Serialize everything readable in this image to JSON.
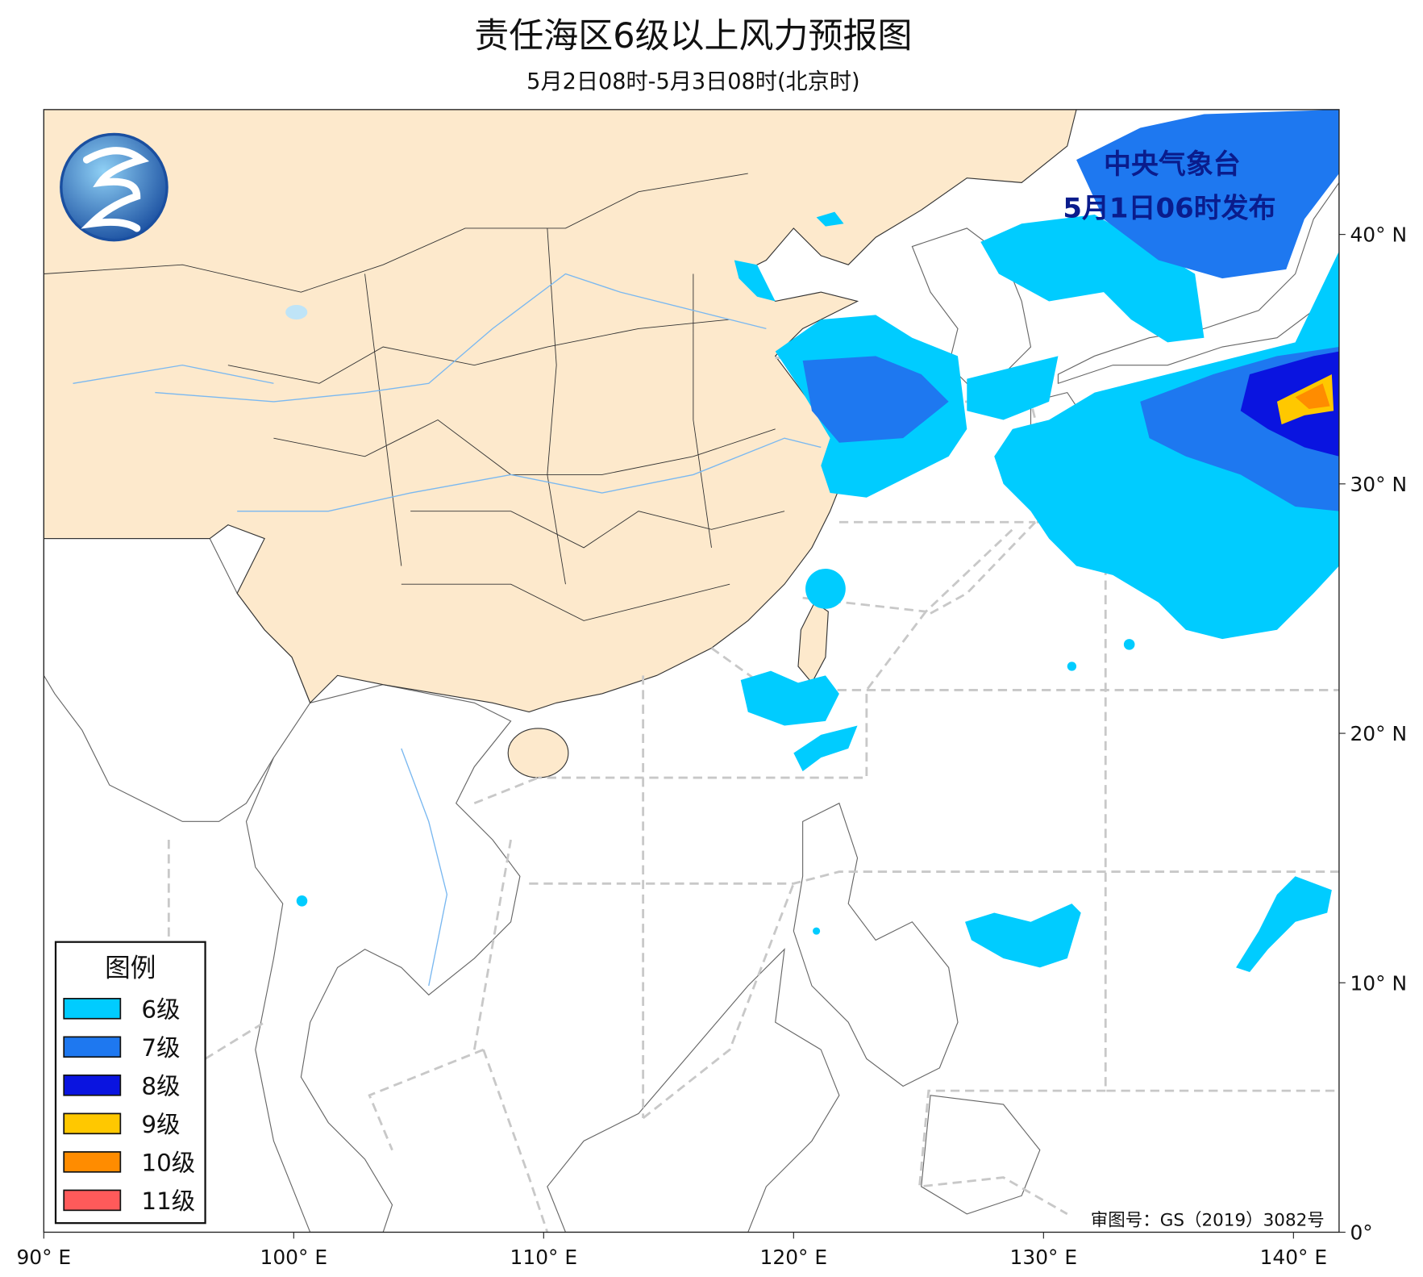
{
  "title": "责任海区6级以上风力预报图",
  "subtitle": "5月2日08时-5月3日08时(北京时)",
  "publisher": "中央气象台",
  "issued": "5月1日06时发布",
  "approval": "审图号：GS（2019）3082号",
  "legend": {
    "title": "图例",
    "items": [
      {
        "label": "6级",
        "color": "#00ccff"
      },
      {
        "label": "7级",
        "color": "#1e78f0"
      },
      {
        "label": "8级",
        "color": "#0a14e0"
      },
      {
        "label": "9级",
        "color": "#ffc800"
      },
      {
        "label": "10级",
        "color": "#ff8c00"
      },
      {
        "label": "11级",
        "color": "#ff5a5a"
      }
    ]
  },
  "lon_ticks": [
    {
      "value": 90,
      "label": "90° E"
    },
    {
      "value": 100,
      "label": "100° E"
    },
    {
      "value": 110,
      "label": "110° E"
    },
    {
      "value": 120,
      "label": "120° E"
    },
    {
      "value": 130,
      "label": "130° E"
    },
    {
      "value": 140,
      "label": "140° E"
    }
  ],
  "lat_ticks": [
    {
      "value": 0,
      "label": "0°"
    },
    {
      "value": 10,
      "label": "10° N"
    },
    {
      "value": 20,
      "label": "20° N"
    },
    {
      "value": 30,
      "label": "30° N"
    },
    {
      "value": 40,
      "label": "40° N"
    }
  ]
}
